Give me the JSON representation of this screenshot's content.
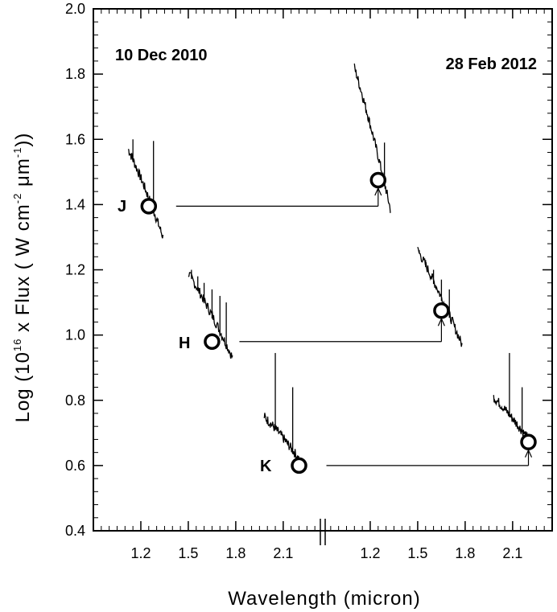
{
  "chart_data": {
    "type": "scatter",
    "title": "",
    "xlabel": "Wavelength (micron)",
    "ylabel": {
      "pre": "Log (10",
      "exp1": "16",
      "mid1": " x Flux ( W cm",
      "exp2": "-2",
      "mid2": " μm",
      "exp3": "-1",
      "post": "))"
    },
    "ylim": [
      0.4,
      2.0
    ],
    "yticks": [
      0.4,
      0.6,
      0.8,
      1.0,
      1.2,
      1.4,
      1.6,
      1.8,
      2.0
    ],
    "yticks_labels": [
      "0.4",
      "0.6",
      "0.8",
      "1.0",
      "1.2",
      "1.4",
      "1.6",
      "1.8",
      "2.0"
    ],
    "grid": false,
    "axis_break": true,
    "panels": [
      {
        "name": "10 Dec 2010",
        "xlim": [
          0.9,
          2.35
        ],
        "xticks_labels": [
          "1.2",
          "1.5",
          "1.8",
          "2.1"
        ],
        "xticks": [
          1.2,
          1.5,
          1.8,
          2.1
        ],
        "photometry": [
          {
            "band": "J",
            "x": 1.25,
            "y": 1.395
          },
          {
            "band": "H",
            "x": 1.65,
            "y": 0.98
          },
          {
            "band": "K",
            "x": 2.2,
            "y": 0.6
          }
        ],
        "spectra": [
          {
            "band": "J",
            "x": [
              1.12,
              1.34
            ],
            "y_start": 1.57,
            "y_end": 1.3,
            "spikes": [
              {
                "x": 1.15,
                "y": 1.6
              },
              {
                "x": 1.28,
                "y": 1.595
              }
            ]
          },
          {
            "band": "H",
            "x": [
              1.5,
              1.78
            ],
            "y_start": 1.19,
            "y_end": 0.93,
            "spikes": [
              {
                "x": 1.52,
                "y": 1.2
              },
              {
                "x": 1.56,
                "y": 1.18
              },
              {
                "x": 1.6,
                "y": 1.16
              },
              {
                "x": 1.65,
                "y": 1.14
              },
              {
                "x": 1.7,
                "y": 1.12
              },
              {
                "x": 1.74,
                "y": 1.1
              }
            ]
          },
          {
            "band": "K",
            "x": [
              1.98,
              2.2
            ],
            "y_start": 0.75,
            "y_end": 0.62,
            "spikes": [
              {
                "x": 2.05,
                "y": 0.945
              },
              {
                "x": 2.16,
                "y": 0.84
              }
            ]
          }
        ]
      },
      {
        "name": "28 Feb 2012",
        "xlim": [
          0.9,
          2.35
        ],
        "xticks_labels": [
          "1.2",
          "1.5",
          "1.8",
          "2.1"
        ],
        "xticks": [
          1.2,
          1.5,
          1.8,
          2.1
        ],
        "photometry": [
          {
            "band": "J",
            "x": 1.25,
            "y": 1.475
          },
          {
            "band": "H",
            "x": 1.65,
            "y": 1.075
          },
          {
            "band": "K",
            "x": 2.2,
            "y": 0.672
          }
        ],
        "spectra": [
          {
            "band": "J",
            "x": [
              1.1,
              1.33
            ],
            "y_start": 1.82,
            "y_end": 1.38,
            "spikes": [
              {
                "x": 1.29,
                "y": 1.59
              }
            ]
          },
          {
            "band": "H",
            "x": [
              1.5,
              1.78
            ],
            "y_start": 1.26,
            "y_end": 0.97,
            "spikes": [
              {
                "x": 1.51,
                "y": 1.26
              },
              {
                "x": 1.55,
                "y": 1.23
              },
              {
                "x": 1.6,
                "y": 1.2
              },
              {
                "x": 1.65,
                "y": 1.17
              },
              {
                "x": 1.7,
                "y": 1.14
              }
            ]
          },
          {
            "band": "K",
            "x": [
              1.98,
              2.2
            ],
            "y_start": 0.81,
            "y_end": 0.68,
            "spikes": [
              {
                "x": 2.08,
                "y": 0.945
              },
              {
                "x": 2.16,
                "y": 0.84
              }
            ]
          }
        ]
      }
    ],
    "connectors": [
      {
        "band": "J",
        "from": 1.395,
        "to": 1.475
      },
      {
        "band": "H",
        "from": 0.98,
        "to": 1.075
      },
      {
        "band": "K",
        "from": 0.6,
        "to": 0.672
      }
    ]
  }
}
